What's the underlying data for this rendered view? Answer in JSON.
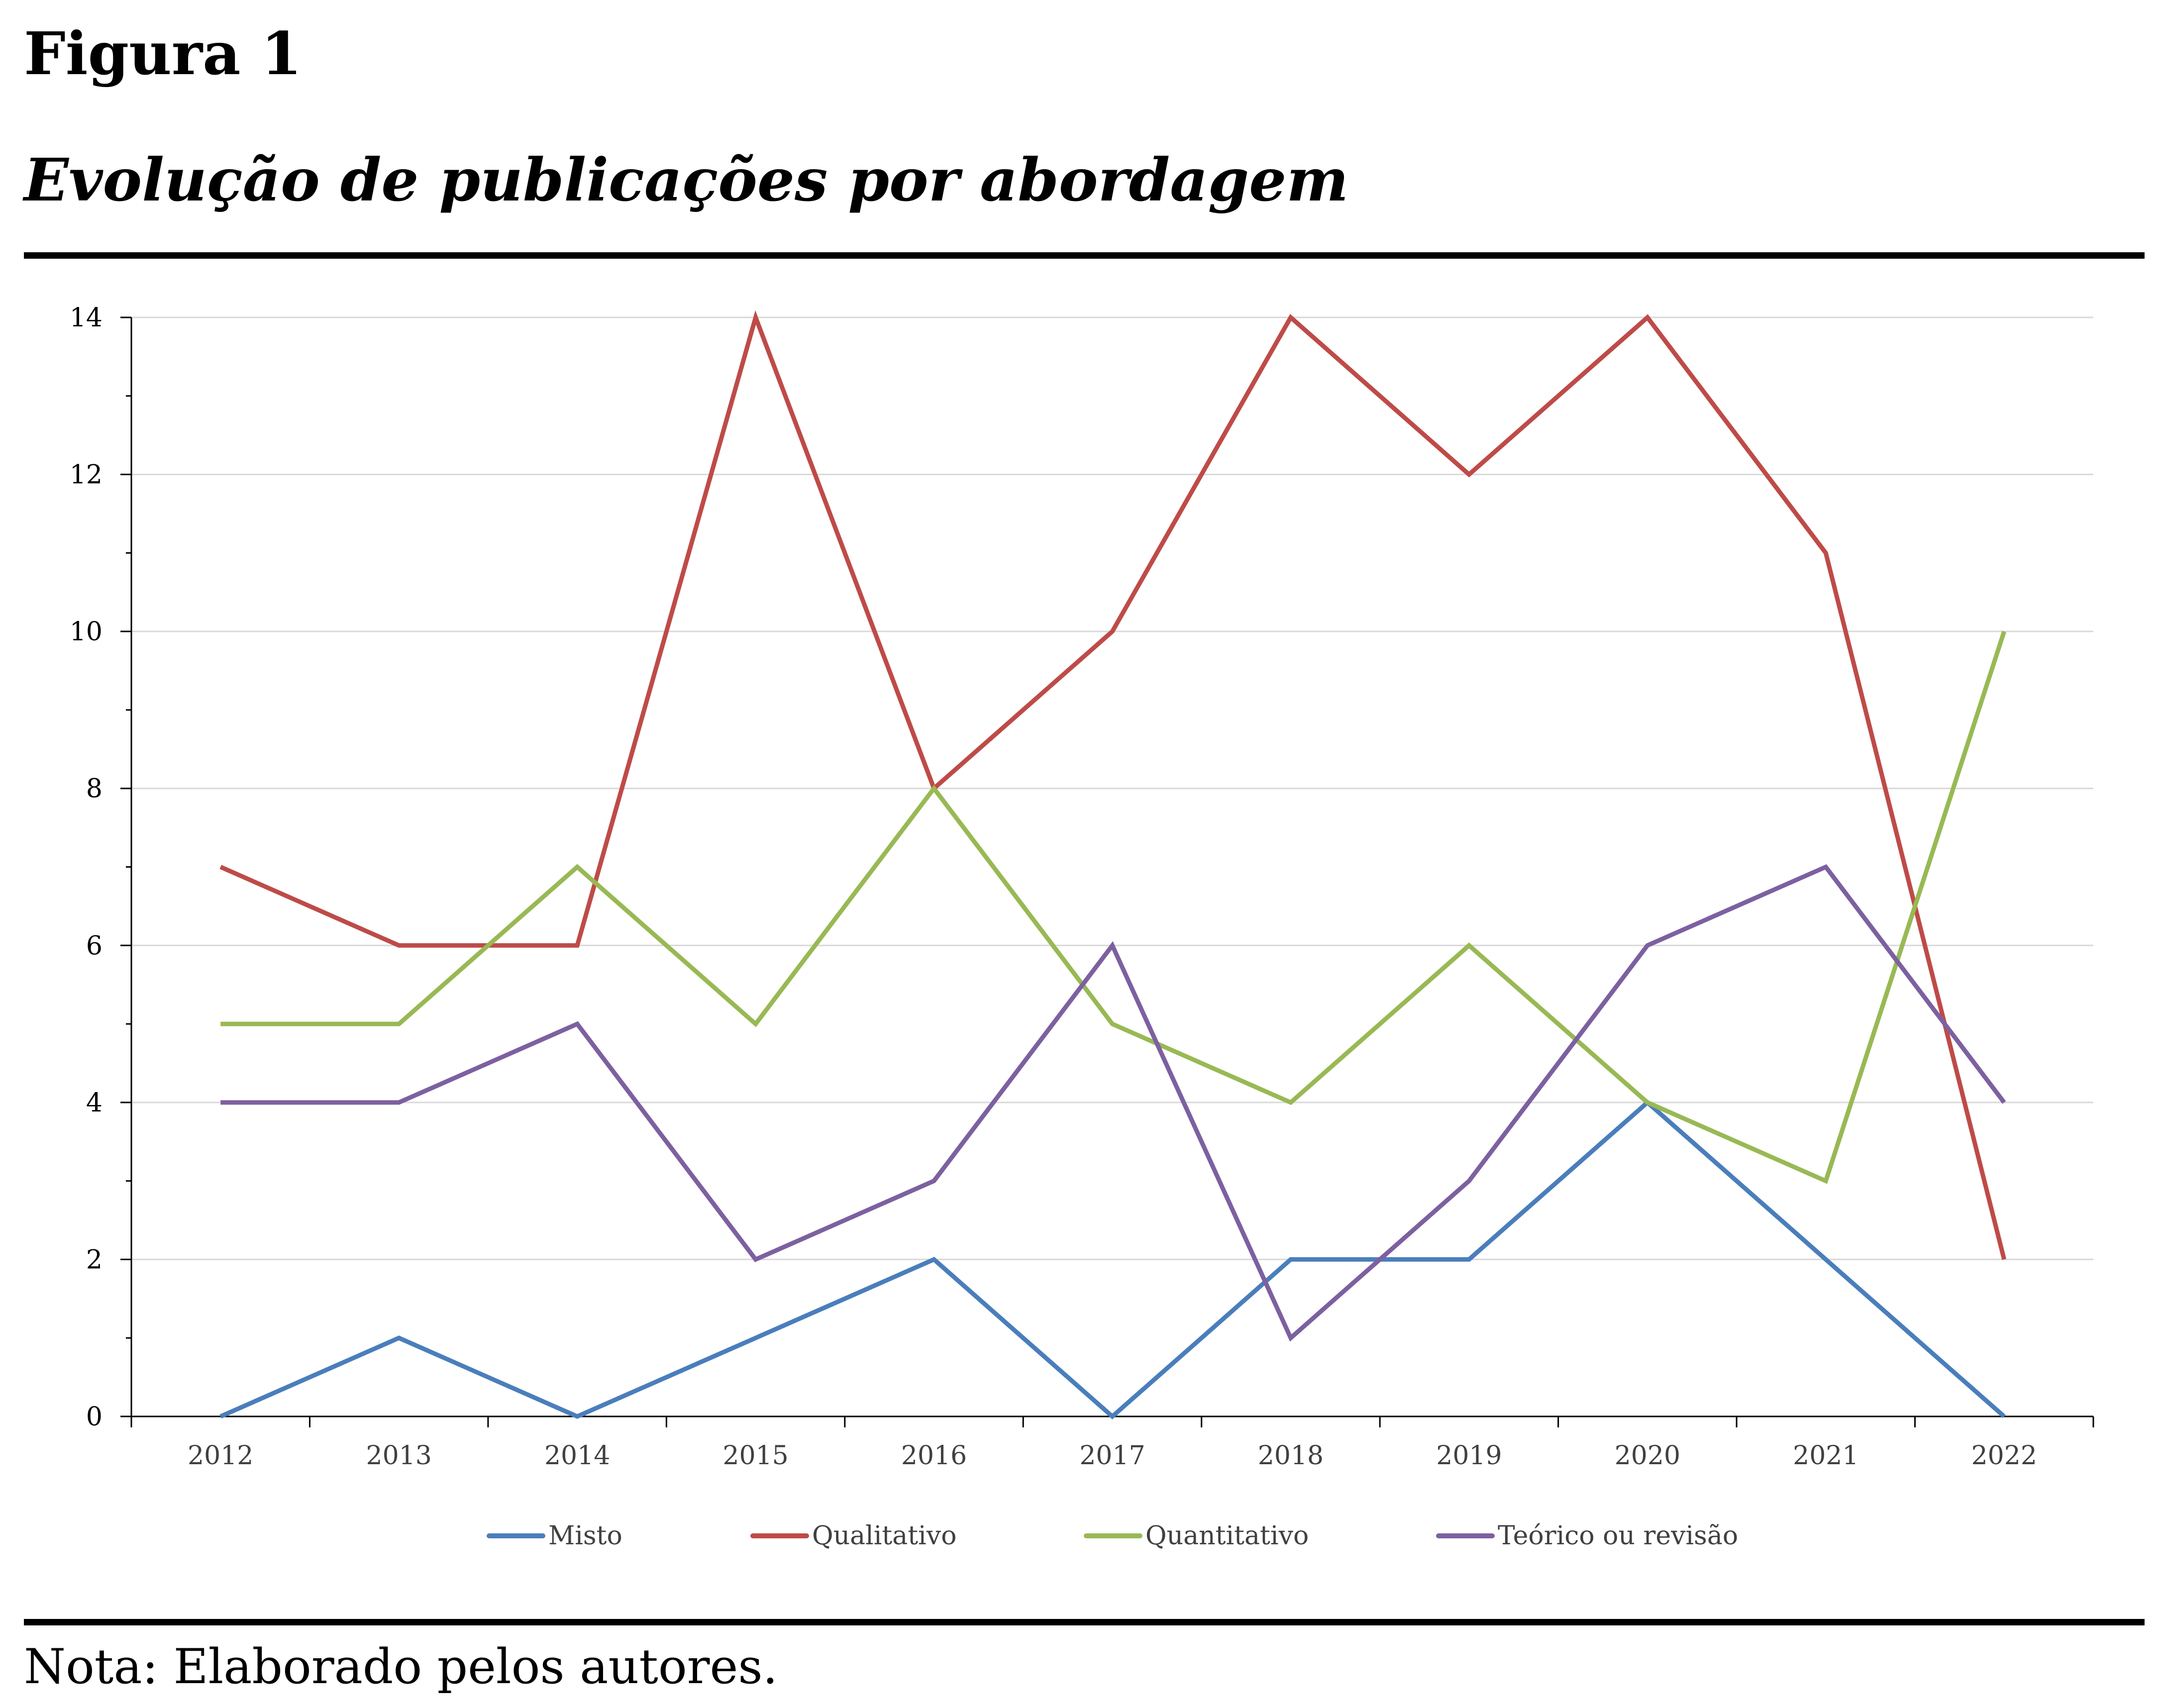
{
  "figure": {
    "label": "Figura 1",
    "title": "Evolução de publicações por abordagem",
    "note": "Nota: Elaborado pelos autores."
  },
  "chart_data": {
    "type": "line",
    "title": "Evolução de publicações por abordagem",
    "xlabel": "",
    "ylabel": "",
    "categories": [
      "2012",
      "2013",
      "2014",
      "2015",
      "2016",
      "2017",
      "2018",
      "2019",
      "2020",
      "2021",
      "2022"
    ],
    "ylim": [
      0,
      14
    ],
    "yticks": [
      0,
      2,
      4,
      6,
      8,
      10,
      12,
      14
    ],
    "grid": true,
    "legend_position": "bottom",
    "series": [
      {
        "name": "Misto",
        "color": "#4A7EBB",
        "values": [
          0,
          1,
          0,
          1,
          2,
          0,
          2,
          2,
          4,
          2,
          0
        ]
      },
      {
        "name": "Qualitativo",
        "color": "#BE4B48",
        "values": [
          7,
          6,
          6,
          14,
          8,
          10,
          14,
          12,
          14,
          11,
          2
        ]
      },
      {
        "name": "Quantitativo",
        "color": "#98B954",
        "values": [
          5,
          5,
          7,
          5,
          8,
          5,
          4,
          6,
          4,
          3,
          10
        ]
      },
      {
        "name": "Teórico ou revisão",
        "color": "#7D60A0",
        "values": [
          4,
          4,
          5,
          2,
          3,
          6,
          1,
          3,
          6,
          7,
          4
        ]
      }
    ]
  }
}
